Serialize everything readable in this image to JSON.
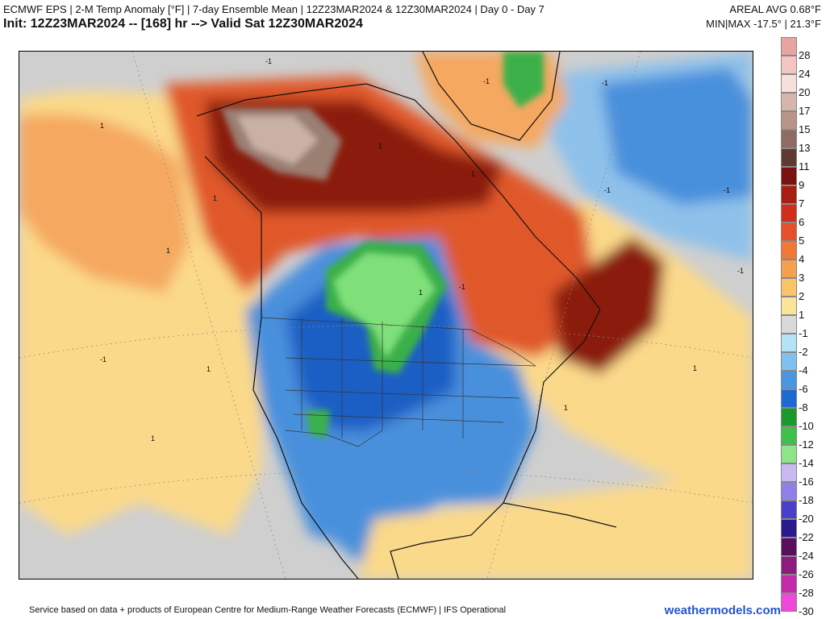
{
  "header": {
    "title_line1": "ECMWF EPS | 2-M Temp Anomaly [°F] | 7-day Ensemble Mean | 12Z23MAR2024 & 12Z30MAR2024 | Day 0 - Day 7",
    "title_line2": "Init: 12Z23MAR2024 -- [168] hr --> Valid Sat 12Z30MAR2024",
    "areal_avg": "AREAL AVG 0.68°F",
    "min_max": "MIN|MAX -17.5° | 21.3°F"
  },
  "colors": {
    "warm_strong": "#8b1a10",
    "warm_mid": "#e0592a",
    "warm_light": "#f5a860",
    "warm_pale": "#fbd98a",
    "neutral": "#cfcfcf",
    "cool_light": "#8ec1ea",
    "cool_mid": "#4a90dc",
    "cool_dark": "#1f5fc4",
    "green": "#3bb04a",
    "green_light": "#7fe07a",
    "brown": "#9a7f72",
    "brown_light": "#c9b1a6"
  },
  "map": {
    "contour_labels": [
      "1",
      "1",
      "1",
      "1",
      "1",
      "1",
      "1",
      "1",
      "1",
      "1",
      "-1",
      "-1",
      "-1",
      "-1",
      "-1",
      "-1",
      "-1",
      "-1"
    ]
  },
  "legend": [
    {
      "label": "28",
      "color": "#e8a4a0"
    },
    {
      "label": "24",
      "color": "#f3c6c2"
    },
    {
      "label": "20",
      "color": "#f7e0dc"
    },
    {
      "label": "17",
      "color": "#d6b6aa"
    },
    {
      "label": "15",
      "color": "#b9948a"
    },
    {
      "label": "13",
      "color": "#8e6c64"
    },
    {
      "label": "11",
      "color": "#5e3a33"
    },
    {
      "label": "9",
      "color": "#7a1010"
    },
    {
      "label": "7",
      "color": "#a81c14"
    },
    {
      "label": "6",
      "color": "#cf2e1c"
    },
    {
      "label": "5",
      "color": "#e4502a"
    },
    {
      "label": "4",
      "color": "#f0793a"
    },
    {
      "label": "3",
      "color": "#f5a04e"
    },
    {
      "label": "2",
      "color": "#f9c46a"
    },
    {
      "label": "1",
      "color": "#fbe49a"
    },
    {
      "label": "-1",
      "color": "#d9d9d9"
    },
    {
      "label": "-2",
      "color": "#b6e2f5"
    },
    {
      "label": "-4",
      "color": "#7fc1ee"
    },
    {
      "label": "-6",
      "color": "#4a94e0"
    },
    {
      "label": "-8",
      "color": "#1f6ad2"
    },
    {
      "label": "-10",
      "color": "#1a9a2a"
    },
    {
      "label": "-12",
      "color": "#3fc04a"
    },
    {
      "label": "-14",
      "color": "#8de58a"
    },
    {
      "label": "-16",
      "color": "#c9b8f2"
    },
    {
      "label": "-18",
      "color": "#8f7fe6"
    },
    {
      "label": "-20",
      "color": "#4a3fc8"
    },
    {
      "label": "-22",
      "color": "#2a1a8e"
    },
    {
      "label": "-24",
      "color": "#5a0f5e"
    },
    {
      "label": "-26",
      "color": "#8e1a7e"
    },
    {
      "label": "-28",
      "color": "#c22aa8"
    },
    {
      "label": "-30",
      "color": "#ee4ad8"
    }
  ],
  "footer": {
    "credit": "Service based on data + products of European Centre for Medium-Range Weather Forecasts (ECMWF) | IFS Operational",
    "brand": "weathermodels.com"
  }
}
